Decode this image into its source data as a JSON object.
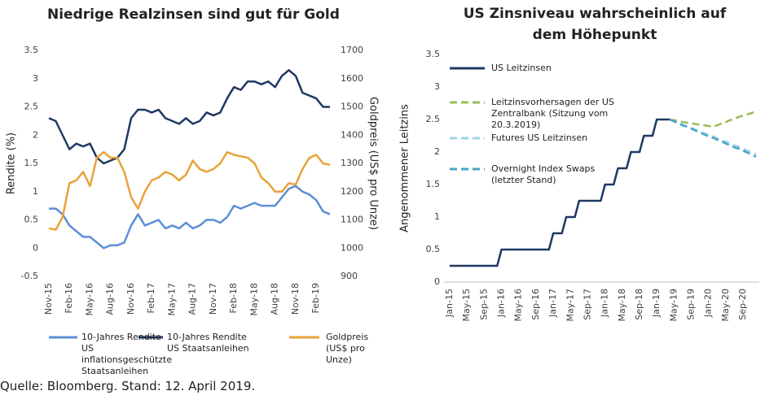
{
  "chart_data": [
    {
      "type": "line",
      "title": "Niedrige Realzinsen sind gut für Gold",
      "y_label": "Rendite (%)",
      "y2_label": "Goldpreis (US$ pro Unze)",
      "categories": [
        "Nov-15",
        null,
        null,
        "Feb-16",
        null,
        null,
        "May-16",
        null,
        null,
        "Aug-16",
        null,
        null,
        "Nov-16",
        null,
        null,
        "Feb-17",
        null,
        null,
        "May-17",
        null,
        null,
        "Aug-17",
        null,
        null,
        "Nov-17",
        null,
        null,
        "Feb-18",
        null,
        null,
        "May-18",
        null,
        null,
        "Aug-18",
        null,
        null,
        "Nov-18",
        null,
        null,
        "Feb-19",
        null,
        null
      ],
      "ylim": [
        -0.5,
        3.5
      ],
      "yticks": [
        -0.5,
        0,
        0.5,
        1,
        1.5,
        2,
        2.5,
        3,
        3.5
      ],
      "y2lim": [
        900,
        1700
      ],
      "y2ticks": [
        900,
        1000,
        1100,
        1200,
        1300,
        1400,
        1500,
        1600,
        1700
      ],
      "series": [
        {
          "name": "10-Jahres Rendite US inflationsgeschützte Staatsanleihen",
          "color": "#5b8fd6",
          "values": [
            0.7,
            0.7,
            0.6,
            0.4,
            0.3,
            0.2,
            0.2,
            0.1,
            0.0,
            0.05,
            0.05,
            0.1,
            0.4,
            0.6,
            0.4,
            0.45,
            0.5,
            0.35,
            0.4,
            0.35,
            0.45,
            0.35,
            0.4,
            0.5,
            0.5,
            0.45,
            0.55,
            0.75,
            0.7,
            0.75,
            0.8,
            0.75,
            0.75,
            0.75,
            0.9,
            1.05,
            1.1,
            1.0,
            0.95,
            0.85,
            0.65,
            0.6
          ]
        },
        {
          "name": "10-Jahres Rendite US Staatsanleihen",
          "color": "#1f3864",
          "values": [
            2.3,
            2.25,
            2.0,
            1.75,
            1.85,
            1.8,
            1.85,
            1.6,
            1.5,
            1.55,
            1.6,
            1.75,
            2.3,
            2.45,
            2.45,
            2.4,
            2.45,
            2.3,
            2.25,
            2.2,
            2.3,
            2.2,
            2.25,
            2.4,
            2.35,
            2.4,
            2.65,
            2.85,
            2.8,
            2.95,
            2.95,
            2.9,
            2.95,
            2.85,
            3.05,
            3.15,
            3.05,
            2.75,
            2.7,
            2.65,
            2.5,
            2.5
          ]
        },
        {
          "name": "Goldpreis (US$ pro Unze)",
          "color": "#e8a33a",
          "axis": "y2",
          "values": [
            1070,
            1065,
            1110,
            1230,
            1240,
            1270,
            1220,
            1320,
            1340,
            1320,
            1320,
            1270,
            1180,
            1140,
            1200,
            1240,
            1250,
            1270,
            1260,
            1240,
            1260,
            1310,
            1280,
            1270,
            1280,
            1300,
            1340,
            1330,
            1325,
            1320,
            1300,
            1250,
            1230,
            1200,
            1200,
            1230,
            1225,
            1280,
            1320,
            1330,
            1300,
            1295
          ]
        }
      ]
    },
    {
      "type": "line",
      "title": "US Zinsniveau wahrscheinlich auf dem Höhepunkt",
      "y_label": "Angenommener Leitzins",
      "categories": [
        "Jan-15",
        null,
        null,
        null,
        "May-15",
        null,
        null,
        null,
        "Sep-15",
        null,
        null,
        null,
        "Jan-16",
        null,
        null,
        null,
        "May-16",
        null,
        null,
        null,
        "Sep-16",
        null,
        null,
        null,
        "Jan-17",
        null,
        null,
        null,
        "May-17",
        null,
        null,
        null,
        "Sep-17",
        null,
        null,
        null,
        "Jan-18",
        null,
        null,
        null,
        "May-18",
        null,
        null,
        null,
        "Sep-18",
        null,
        null,
        null,
        "Jan-19",
        null,
        null,
        null,
        "May-19",
        null,
        null,
        null,
        "Sep-19",
        null,
        null,
        null,
        "Jan-20",
        null,
        null,
        null,
        "May-20",
        null,
        null,
        null,
        "Sep-20",
        null,
        null,
        null
      ],
      "ylim": [
        0,
        3.5
      ],
      "yticks": [
        0,
        0.5,
        1,
        1.5,
        2,
        2.5,
        3,
        3.5
      ],
      "series": [
        {
          "name": "US Leitzinsen",
          "color": "#203864",
          "dashed": false,
          "values": [
            0.25,
            0.25,
            0.25,
            0.25,
            0.25,
            0.25,
            0.25,
            0.25,
            0.25,
            0.25,
            0.25,
            0.25,
            0.5,
            0.5,
            0.5,
            0.5,
            0.5,
            0.5,
            0.5,
            0.5,
            0.5,
            0.5,
            0.5,
            0.5,
            0.75,
            0.75,
            0.75,
            1.0,
            1.0,
            1.0,
            1.25,
            1.25,
            1.25,
            1.25,
            1.25,
            1.25,
            1.5,
            1.5,
            1.5,
            1.75,
            1.75,
            1.75,
            2.0,
            2.0,
            2.0,
            2.25,
            2.25,
            2.25,
            2.5,
            2.5,
            2.5,
            2.5,
            null,
            null,
            null,
            null,
            null,
            null,
            null,
            null,
            null,
            null,
            null,
            null,
            null,
            null,
            null,
            null,
            null,
            null,
            null,
            null
          ]
        },
        {
          "name": "Leitzinsvorhersagen der US Zentralbank (Sitzung vom 20.3.2019)",
          "color": "#9bbb59",
          "dashed": true,
          "values": [
            null,
            null,
            null,
            null,
            null,
            null,
            null,
            null,
            null,
            null,
            null,
            null,
            null,
            null,
            null,
            null,
            null,
            null,
            null,
            null,
            null,
            null,
            null,
            null,
            null,
            null,
            null,
            null,
            null,
            null,
            null,
            null,
            null,
            null,
            null,
            null,
            null,
            null,
            null,
            null,
            null,
            null,
            null,
            null,
            null,
            null,
            null,
            null,
            null,
            null,
            null,
            2.5,
            2.49,
            2.48,
            2.46,
            2.45,
            2.44,
            2.43,
            2.42,
            2.41,
            2.4,
            2.39,
            2.41,
            2.44,
            2.46,
            2.49,
            2.51,
            2.54,
            2.56,
            2.58,
            2.6,
            2.63
          ]
        },
        {
          "name": "Futures US Leitzinsen",
          "color": "#9dd3ea",
          "dashed": true,
          "values": [
            null,
            null,
            null,
            null,
            null,
            null,
            null,
            null,
            null,
            null,
            null,
            null,
            null,
            null,
            null,
            null,
            null,
            null,
            null,
            null,
            null,
            null,
            null,
            null,
            null,
            null,
            null,
            null,
            null,
            null,
            null,
            null,
            null,
            null,
            null,
            null,
            null,
            null,
            null,
            null,
            null,
            null,
            null,
            null,
            null,
            null,
            null,
            null,
            null,
            null,
            null,
            2.5,
            2.47,
            2.45,
            2.42,
            2.39,
            2.37,
            2.34,
            2.31,
            2.29,
            2.26,
            2.24,
            2.21,
            2.18,
            2.16,
            2.13,
            2.1,
            2.08,
            2.05,
            2.02,
            2.0,
            1.97
          ]
        },
        {
          "name": "Overnight Index Swaps (letzter Stand)",
          "color": "#4aa3c8",
          "dashed": true,
          "values": [
            null,
            null,
            null,
            null,
            null,
            null,
            null,
            null,
            null,
            null,
            null,
            null,
            null,
            null,
            null,
            null,
            null,
            null,
            null,
            null,
            null,
            null,
            null,
            null,
            null,
            null,
            null,
            null,
            null,
            null,
            null,
            null,
            null,
            null,
            null,
            null,
            null,
            null,
            null,
            null,
            null,
            null,
            null,
            null,
            null,
            null,
            null,
            null,
            null,
            null,
            null,
            2.5,
            2.47,
            2.44,
            2.41,
            2.39,
            2.36,
            2.33,
            2.3,
            2.27,
            2.24,
            2.22,
            2.19,
            2.16,
            2.13,
            2.1,
            2.07,
            2.05,
            2.02,
            1.99,
            1.96,
            1.93
          ]
        }
      ]
    }
  ],
  "footer": "Quelle: Bloomberg. Stand: 12. April 2019."
}
